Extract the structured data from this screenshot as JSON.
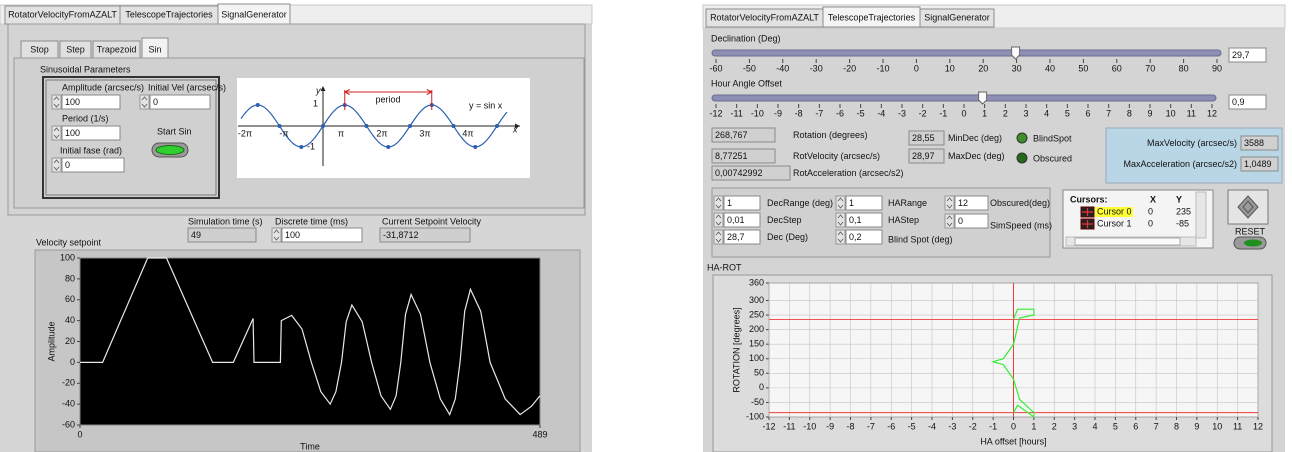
{
  "signal_panel": {
    "tabs": [
      "RotatorVelocityFromAZALT",
      "TelescopeTrajectories",
      "SignalGenerator"
    ],
    "mode_tabs": [
      "Stop",
      "Step",
      "Trapezoid",
      "Sin"
    ],
    "parameters": {
      "title": "Sinusoidal Parameters",
      "amplitude": {
        "label": "Amplitude (arcsec/s)",
        "value": "100"
      },
      "initial_vel": {
        "label": "Initial Vel (arcsec/s)",
        "value": "0"
      },
      "period": {
        "label": "Period (1/s)",
        "value": "100"
      },
      "start_button": "Start Sin",
      "initial_fase": {
        "label": "Initial fase (rad)",
        "value": "0"
      }
    },
    "sine_figure": {
      "y_axis": "y",
      "x_axis": "x",
      "period": "period",
      "equation": "y = sin x",
      "y_ticks": [
        "1",
        "-1"
      ],
      "x_ticks": [
        "-2π",
        "-π",
        "π",
        "2π",
        "3π",
        "4π"
      ]
    },
    "simulation_time": {
      "label": "Simulation time (s)",
      "value": "49"
    },
    "discrete_time": {
      "label": "Discrete time (ms)",
      "value": "100"
    },
    "current_setpoint": {
      "label": "Current Setpoint Velocity",
      "value": "-31,8712"
    }
  },
  "telescope_panel": {
    "tabs": [
      "RotatorVelocityFromAZALT",
      "TelescopeTrajectories",
      "SignalGenerator"
    ],
    "declination": {
      "label": "Declination (Deg)",
      "value": 29.7,
      "display": "29,7",
      "lim": [
        -60,
        90
      ],
      "ticks": [
        -60,
        -50,
        -40,
        -30,
        -20,
        -10,
        0,
        10,
        20,
        30,
        40,
        50,
        60,
        70,
        80,
        90
      ]
    },
    "hour_angle": {
      "label": "Hour Angle Offset",
      "value": 0.9,
      "display": "0,9",
      "lim": [
        -12,
        12
      ],
      "ticks": [
        -12,
        -11,
        -10,
        -9,
        -8,
        -7,
        -6,
        -5,
        -4,
        -3,
        -2,
        -1,
        0,
        1,
        2,
        3,
        4,
        5,
        6,
        7,
        8,
        9,
        10,
        11,
        12
      ]
    },
    "indicators": [
      {
        "label": "Rotation (degrees)",
        "value": "268,767"
      },
      {
        "label": "RotVelocity (arcsec/s)",
        "value": "8,77251"
      },
      {
        "label": "RotAcceleration (arcsec/s2)",
        "value": "0,00742992"
      }
    ],
    "dec_limits": [
      {
        "label": "MinDec (deg)",
        "value": "28,55"
      },
      {
        "label": "MaxDec (deg)",
        "value": "28,97"
      }
    ],
    "lights": [
      "BlindSpot",
      "Obscured"
    ],
    "maxima": [
      {
        "label": "MaxVelocity (arcsec/s)",
        "value": "3588"
      },
      {
        "label": "MaxAcceleration (arcsec/s2)",
        "value": "1,0489"
      }
    ],
    "controls": [
      {
        "label": "DecRange (deg)",
        "value": "1"
      },
      {
        "label": "DecStep",
        "value": "0,01"
      },
      {
        "label": "Dec (Deg)",
        "value": "28,7"
      },
      {
        "label": "HARange",
        "value": "1"
      },
      {
        "label": "HAStep",
        "value": "0,1"
      },
      {
        "label": "Blind Spot (deg)",
        "value": "0,2"
      },
      {
        "label": "Obscured(deg)",
        "value": "12"
      },
      {
        "label": "SimSpeed (ms)",
        "value": "0"
      }
    ],
    "cursors": {
      "headers": [
        "Cursors:",
        "X",
        "Y"
      ],
      "rows": [
        {
          "name": "Cursor 0",
          "x": 0,
          "y": 235
        },
        {
          "name": "Cursor 1",
          "x": 0,
          "y": -85
        }
      ]
    },
    "reset": "RESET"
  },
  "chart_data": [
    {
      "type": "line",
      "title": "Velocity setpoint",
      "y_label": "Amplitude",
      "x_label": "Time",
      "x": [
        0,
        24,
        72,
        92,
        141,
        163,
        184,
        185,
        213,
        214,
        225,
        236,
        246,
        256,
        266,
        272,
        278,
        283,
        289,
        300,
        310,
        320,
        330,
        336,
        341,
        346,
        352,
        362,
        372,
        383,
        393,
        399,
        404,
        409,
        415,
        426,
        436,
        452,
        468,
        480,
        489
      ],
      "values": [
        0,
        0,
        100,
        100,
        0,
        0,
        42,
        0,
        0,
        40,
        45,
        32,
        0,
        -28,
        -40,
        -28,
        0,
        39,
        55,
        39,
        0,
        -32,
        -45,
        -32,
        0,
        46,
        65,
        46,
        0,
        -35,
        -50,
        -35,
        0,
        49,
        70,
        49,
        0,
        -35,
        -50,
        -42,
        -32
      ],
      "color": "#e8e8e8",
      "background": "#000000",
      "xlim": [
        0,
        489
      ],
      "xticks": [
        0,
        489
      ],
      "ylim": [
        -60,
        100
      ],
      "yticks": [
        -60,
        -40,
        -20,
        0,
        20,
        40,
        60,
        80,
        100
      ],
      "grid": false
    },
    {
      "type": "line",
      "title": "HA-ROT",
      "y_label": "ROTATION [degrees]",
      "x_label": "HA offset [hours]",
      "x": [
        0,
        0.2,
        1,
        1,
        0.3,
        0,
        -0.5,
        -1,
        -0.5,
        0,
        0.3,
        1,
        1,
        0.2,
        0
      ],
      "values": [
        -85,
        -60,
        -100,
        -85,
        -40,
        30,
        80,
        90,
        100,
        150,
        240,
        250,
        270,
        270,
        235
      ],
      "color": "#33ee33",
      "background": "#f6f6f6",
      "xlim": [
        -12,
        12
      ],
      "xticks": [
        -12,
        -11,
        -10,
        -9,
        -8,
        -7,
        -6,
        -5,
        -4,
        -3,
        -2,
        -1,
        0,
        1,
        2,
        3,
        4,
        5,
        6,
        7,
        8,
        9,
        10,
        11,
        12
      ],
      "ylim": [
        -100,
        360
      ],
      "yticks": [
        -100,
        -50,
        0,
        50,
        100,
        150,
        200,
        250,
        300,
        360
      ],
      "grid": true
    }
  ]
}
